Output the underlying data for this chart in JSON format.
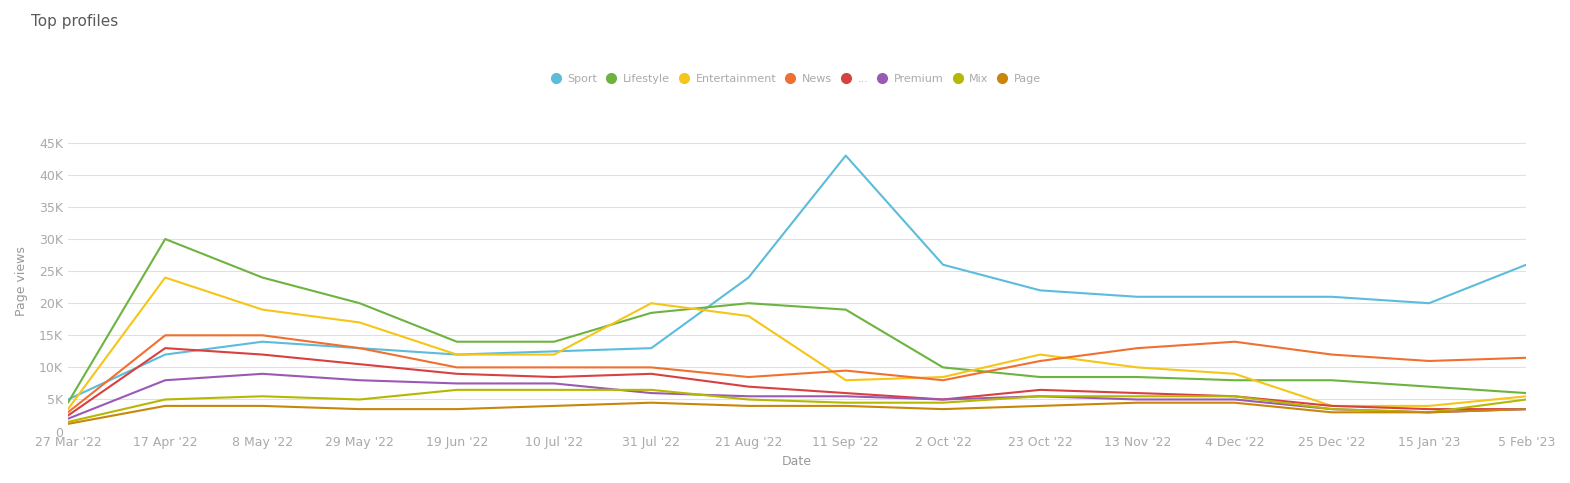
{
  "title": "Top profiles",
  "ylabel": "Page views",
  "xlabel": "Date",
  "x_labels": [
    "27 Mar '22",
    "17 Apr '22",
    "8 May '22",
    "29 May '22",
    "19 Jun '22",
    "10 Jul '22",
    "31 Jul '22",
    "21 Aug '22",
    "11 Sep '22",
    "2 Oct '22",
    "23 Oct '22",
    "13 Nov '22",
    "4 Dec '22",
    "25 Dec '22",
    "15 Jan '23",
    "5 Feb '23"
  ],
  "yticks": [
    0,
    5000,
    10000,
    15000,
    20000,
    25000,
    30000,
    35000,
    40000,
    45000
  ],
  "ytick_labels": [
    "0",
    "5K",
    "10K",
    "15K",
    "20K",
    "25K",
    "30K",
    "35K",
    "40K",
    "45K"
  ],
  "ylim": [
    0,
    47000
  ],
  "series": [
    {
      "name": "Sport",
      "color": "#5BBCDB",
      "data": [
        5000,
        12000,
        14000,
        13000,
        12000,
        12500,
        13000,
        24000,
        43000,
        26000,
        22000,
        21000,
        21000,
        21000,
        20000,
        26000
      ]
    },
    {
      "name": "Lifestyle",
      "color": "#6DB33F",
      "data": [
        4500,
        30000,
        24000,
        20000,
        14000,
        14000,
        18500,
        20000,
        19000,
        10000,
        8500,
        8500,
        8000,
        8000,
        7000,
        6000
      ]
    },
    {
      "name": "Entertainment",
      "color": "#F5C518",
      "data": [
        3500,
        24000,
        19000,
        17000,
        12000,
        12000,
        20000,
        18000,
        8000,
        8500,
        12000,
        10000,
        9000,
        4000,
        4000,
        5500
      ]
    },
    {
      "name": "News",
      "color": "#F07030",
      "data": [
        3000,
        15000,
        15000,
        13000,
        10000,
        10000,
        10000,
        8500,
        9500,
        8000,
        11000,
        13000,
        14000,
        12000,
        11000,
        11500
      ]
    },
    {
      "name": "...",
      "color": "#D94040",
      "data": [
        2500,
        13000,
        12000,
        10500,
        9000,
        8500,
        9000,
        7000,
        6000,
        5000,
        6500,
        6000,
        5500,
        4000,
        3500,
        3500
      ]
    },
    {
      "name": "Premium",
      "color": "#9B59B6",
      "data": [
        2000,
        8000,
        9000,
        8000,
        7500,
        7500,
        6000,
        5500,
        5500,
        5000,
        5500,
        5000,
        5000,
        3500,
        3000,
        3500
      ]
    },
    {
      "name": "Mix",
      "color": "#B5B800",
      "data": [
        1500,
        5000,
        5500,
        5000,
        6500,
        6500,
        6500,
        5000,
        4500,
        4500,
        5500,
        5500,
        5500,
        3500,
        3000,
        5000
      ]
    },
    {
      "name": "Page",
      "color": "#C8860A",
      "data": [
        1200,
        4000,
        4000,
        3500,
        3500,
        4000,
        4500,
        4000,
        4000,
        3500,
        4000,
        4500,
        4500,
        3000,
        3000,
        3500
      ]
    }
  ],
  "background_color": "#ffffff",
  "grid_color": "#e0e0e0",
  "title_color": "#5a5a5a",
  "axis_label_color": "#999999",
  "tick_label_color": "#aaaaaa"
}
